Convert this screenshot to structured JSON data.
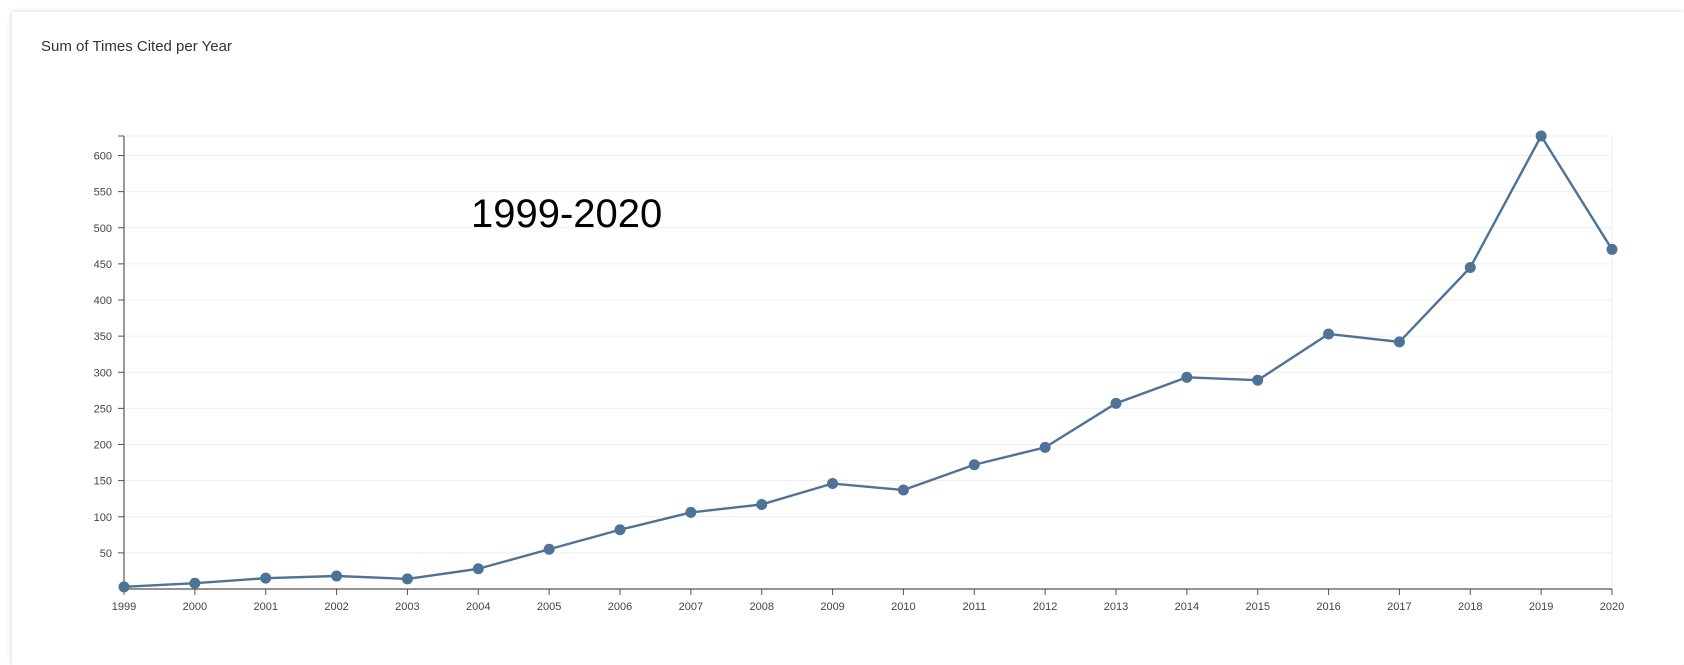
{
  "card": {
    "title": "Sum of Times Cited per Year"
  },
  "chart_data": {
    "type": "line",
    "title": "Sum of Times Cited per Year",
    "xlabel": "",
    "ylabel": "",
    "annotation": "1999-2020",
    "x": [
      "1999",
      "2000",
      "2001",
      "2002",
      "2003",
      "2004",
      "2005",
      "2006",
      "2007",
      "2008",
      "2009",
      "2010",
      "2011",
      "2012",
      "2013",
      "2014",
      "2015",
      "2016",
      "2017",
      "2018",
      "2019",
      "2020"
    ],
    "series": [
      {
        "values": [
          3,
          8,
          15,
          18,
          14,
          28,
          55,
          82,
          106,
          117,
          146,
          137,
          172,
          196,
          257,
          293,
          289,
          353,
          342,
          445,
          627,
          470
        ]
      }
    ],
    "ylim": [
      0,
      627
    ],
    "yticks": [
      50,
      100,
      150,
      200,
      250,
      300,
      350,
      400,
      450,
      500,
      550,
      600
    ],
    "grid": true,
    "legend": "none",
    "colors": {
      "line": "#4e7397",
      "grid": "#eeeeee",
      "axis": "#555555"
    }
  }
}
